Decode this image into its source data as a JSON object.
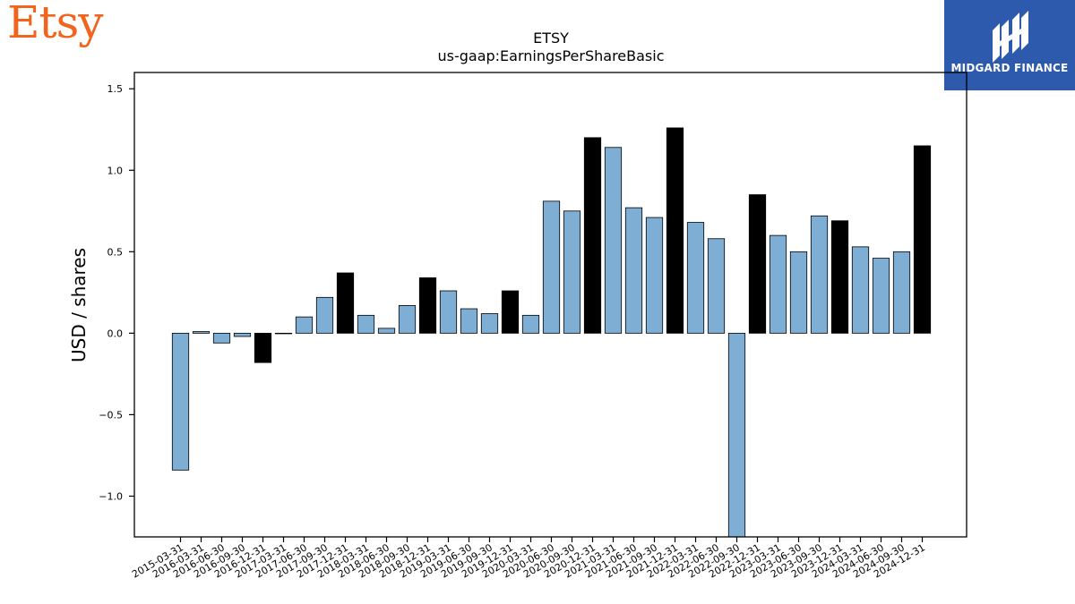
{
  "brand": {
    "name": "Etsy"
  },
  "partner": {
    "name": "MIDGARD FINANCE"
  },
  "colors": {
    "regular": "#7eaed3",
    "year_end": "#000000",
    "axis": "#000000",
    "brand": "#f1641e",
    "partner_bg": "#2d5aad"
  },
  "chart_data": {
    "type": "bar",
    "title": "ETSY",
    "subtitle": "us-gaap:EarningsPerShareBasic",
    "xlabel": "",
    "ylabel": "USD / shares",
    "ylim": [
      -1.25,
      1.6
    ],
    "yticks": [
      -1.0,
      -0.5,
      0.0,
      0.5,
      1.0,
      1.5
    ],
    "ytick_labels": [
      "−1.0",
      "−0.5",
      "0.0",
      "0.5",
      "1.0",
      "1.5"
    ],
    "grid": false,
    "categories": [
      "2015-03-31",
      "2016-03-31",
      "2016-06-30",
      "2016-09-30",
      "2016-12-31",
      "2017-03-31",
      "2017-06-30",
      "2017-09-30",
      "2017-12-31",
      "2018-03-31",
      "2018-06-30",
      "2018-09-30",
      "2018-12-31",
      "2019-03-31",
      "2019-06-30",
      "2019-09-30",
      "2019-12-31",
      "2020-03-31",
      "2020-06-30",
      "2020-09-30",
      "2020-12-31",
      "2021-03-31",
      "2021-06-30",
      "2021-09-30",
      "2021-12-31",
      "2022-03-31",
      "2022-06-30",
      "2022-09-30",
      "2022-12-31",
      "2023-03-31",
      "2023-06-30",
      "2023-09-30",
      "2023-12-31",
      "2024-03-31",
      "2024-06-30",
      "2024-09-30",
      "2024-12-31"
    ],
    "values": [
      -0.84,
      0.01,
      -0.06,
      -0.02,
      -0.18,
      0.0,
      0.1,
      0.22,
      0.37,
      0.11,
      0.03,
      0.17,
      0.34,
      0.26,
      0.15,
      0.12,
      0.26,
      0.11,
      0.81,
      0.75,
      1.2,
      1.14,
      0.77,
      0.71,
      1.26,
      0.68,
      0.58,
      -1.25,
      0.85,
      0.6,
      0.5,
      0.72,
      0.69,
      0.53,
      0.46,
      0.5,
      1.15
    ],
    "year_end": [
      false,
      false,
      false,
      false,
      true,
      false,
      false,
      false,
      true,
      false,
      false,
      false,
      true,
      false,
      false,
      false,
      true,
      false,
      false,
      false,
      true,
      false,
      false,
      false,
      true,
      false,
      false,
      false,
      true,
      false,
      false,
      false,
      true,
      false,
      false,
      false,
      true
    ]
  }
}
